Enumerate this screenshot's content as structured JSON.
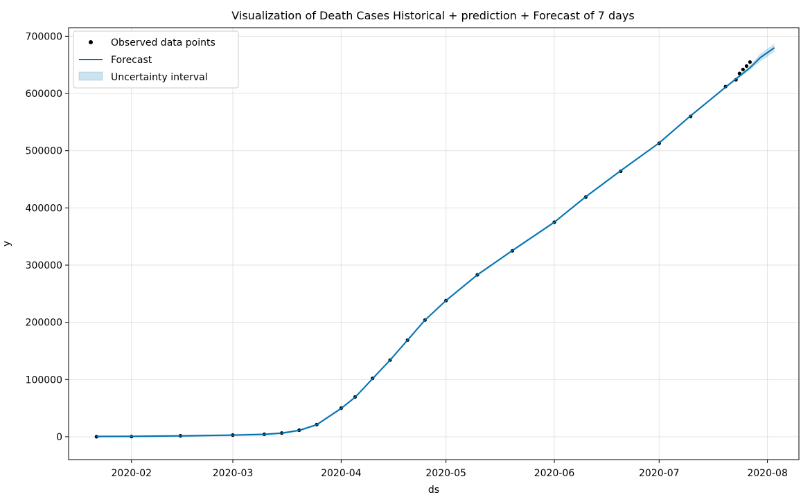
{
  "chart_data": {
    "type": "line",
    "title": "Visualization of Death Cases Historical + prediction + Forecast of 7 days",
    "xlabel": "ds",
    "ylabel": "y",
    "x_type": "date",
    "xlim": [
      "2020-01-14",
      "2020-08-10"
    ],
    "ylim": [
      -40000,
      715000
    ],
    "x_ticks": [
      "2020-02",
      "2020-03",
      "2020-04",
      "2020-05",
      "2020-06",
      "2020-07",
      "2020-08"
    ],
    "y_ticks": [
      0,
      100000,
      200000,
      300000,
      400000,
      500000,
      600000,
      700000
    ],
    "y_tick_labels": [
      "0",
      "100000",
      "200000",
      "300000",
      "400000",
      "500000",
      "600000",
      "700000"
    ],
    "grid": true,
    "legend_position": "top-left",
    "legend": [
      "Observed data points",
      "Forecast",
      "Uncertainty interval"
    ],
    "colors": {
      "observed": "#000000",
      "forecast": "#0072B2",
      "interval": "#0072B2"
    },
    "observed": {
      "x": [
        "2020-01-22",
        "2020-02-01",
        "2020-02-15",
        "2020-03-01",
        "2020-03-10",
        "2020-03-15",
        "2020-03-20",
        "2020-03-25",
        "2020-04-01",
        "2020-04-05",
        "2020-04-10",
        "2020-04-15",
        "2020-04-20",
        "2020-04-25",
        "2020-05-01",
        "2020-05-10",
        "2020-05-20",
        "2020-06-01",
        "2020-06-10",
        "2020-06-20",
        "2020-07-01",
        "2020-07-10",
        "2020-07-20",
        "2020-07-23",
        "2020-07-24",
        "2020-07-25",
        "2020-07-26",
        "2020-07-27"
      ],
      "y": [
        17,
        259,
        1666,
        2990,
        4260,
        6500,
        11400,
        21200,
        50000,
        69500,
        102000,
        134000,
        169000,
        204000,
        238000,
        283000,
        325000,
        375000,
        419000,
        464000,
        513000,
        560000,
        612000,
        624000,
        635000,
        642000,
        648000,
        655000
      ]
    },
    "forecast": {
      "x": [
        "2020-01-22",
        "2020-02-01",
        "2020-02-15",
        "2020-03-01",
        "2020-03-10",
        "2020-03-15",
        "2020-03-20",
        "2020-03-25",
        "2020-04-01",
        "2020-04-05",
        "2020-04-10",
        "2020-04-15",
        "2020-04-20",
        "2020-04-25",
        "2020-05-01",
        "2020-05-10",
        "2020-05-20",
        "2020-06-01",
        "2020-06-10",
        "2020-06-20",
        "2020-07-01",
        "2020-07-10",
        "2020-07-20",
        "2020-07-27",
        "2020-07-30",
        "2020-08-03"
      ],
      "y": [
        500,
        700,
        1500,
        2800,
        4200,
        6400,
        11000,
        21000,
        49500,
        69000,
        101500,
        134000,
        169000,
        204000,
        238000,
        283000,
        325500,
        375000,
        419500,
        465000,
        513500,
        561000,
        611000,
        645000,
        663000,
        680000
      ],
      "lower": [
        -1500,
        -1300,
        -500,
        800,
        2200,
        4400,
        9000,
        19000,
        47500,
        67000,
        99500,
        132000,
        167000,
        202000,
        236000,
        281000,
        323500,
        373000,
        417500,
        463000,
        511500,
        559000,
        609000,
        641000,
        656000,
        673000
      ],
      "upper": [
        2500,
        2700,
        3500,
        4800,
        6200,
        8400,
        13000,
        23000,
        51500,
        71000,
        103500,
        136000,
        171000,
        206000,
        240000,
        285000,
        327500,
        377000,
        421500,
        467000,
        515500,
        563000,
        613000,
        649000,
        670000,
        687000
      ]
    }
  }
}
